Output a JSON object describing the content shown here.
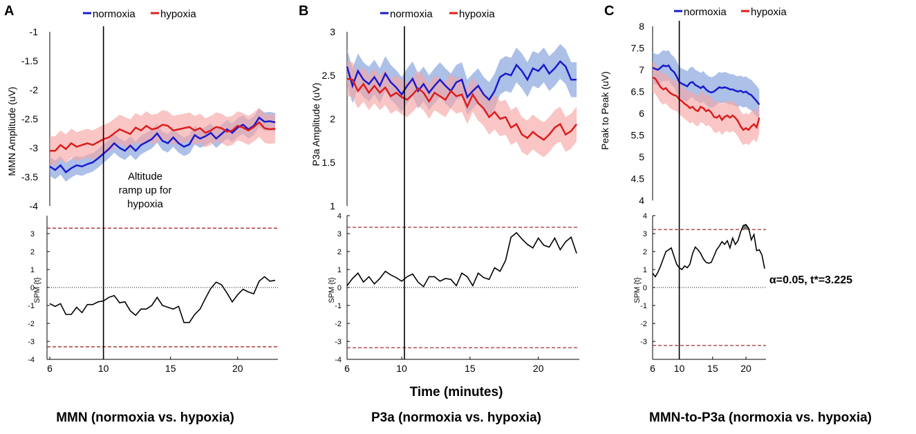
{
  "figure": {
    "common_xlabel": "Time (minutes)",
    "colors": {
      "normoxia": "#1a1acc",
      "hypoxia": "#dd1c1c",
      "normoxia_band": "#7f9edc",
      "hypoxia_band": "#f6a6a6",
      "threshold": "#a52a2a",
      "spm": "#000000"
    }
  },
  "chart_data": [
    {
      "panel": "A",
      "type": "line",
      "title": "MMN (normoxia vs. hypoxia)",
      "top": {
        "ylabel": "MMN Amplitude (uV)",
        "ylim": [
          -4,
          -1
        ],
        "yticks": [
          -4,
          -3.5,
          -3,
          -2.5,
          -2,
          -1.5,
          -1
        ],
        "legend": [
          "normoxia",
          "hypoxia"
        ],
        "legend_position": "top",
        "x": [
          6,
          6.4,
          6.8,
          7.2,
          7.6,
          8,
          8.4,
          8.8,
          9.2,
          9.6,
          10,
          10.4,
          10.8,
          11.2,
          11.6,
          12,
          12.4,
          12.8,
          13.2,
          13.6,
          14,
          14.4,
          14.8,
          15.2,
          15.6,
          16,
          16.4,
          16.8,
          17.2,
          17.6,
          18,
          18.4,
          18.8,
          19.2,
          19.6,
          20,
          20.4,
          20.8,
          21.2,
          21.6,
          22,
          22.4,
          22.8
        ],
        "series": [
          {
            "name": "normoxia",
            "values": [
              -3.32,
              -3.38,
              -3.3,
              -3.42,
              -3.35,
              -3.3,
              -3.32,
              -3.28,
              -3.25,
              -3.18,
              -3.1,
              -3.02,
              -2.92,
              -3.0,
              -3.05,
              -2.96,
              -3.05,
              -2.95,
              -2.9,
              -2.85,
              -2.75,
              -2.88,
              -2.92,
              -2.82,
              -2.92,
              -2.98,
              -2.94,
              -2.78,
              -2.84,
              -2.8,
              -2.74,
              -2.84,
              -2.76,
              -2.68,
              -2.74,
              -2.65,
              -2.6,
              -2.68,
              -2.62,
              -2.48,
              -2.55,
              -2.54,
              -2.56
            ],
            "band": 0.16
          },
          {
            "name": "hypoxia",
            "values": [
              -3.05,
              -3.05,
              -2.95,
              -3.02,
              -2.92,
              -2.98,
              -2.95,
              -2.92,
              -2.95,
              -2.9,
              -2.85,
              -2.82,
              -2.75,
              -2.68,
              -2.72,
              -2.76,
              -2.65,
              -2.7,
              -2.62,
              -2.68,
              -2.66,
              -2.6,
              -2.62,
              -2.7,
              -2.68,
              -2.66,
              -2.64,
              -2.7,
              -2.66,
              -2.74,
              -2.7,
              -2.64,
              -2.66,
              -2.72,
              -2.7,
              -2.62,
              -2.65,
              -2.7,
              -2.64,
              -2.56,
              -2.66,
              -2.68,
              -2.67
            ],
            "band": 0.25
          }
        ]
      },
      "bottom": {
        "ylabel": "SPM {t}",
        "ylim": [
          -4,
          4
        ],
        "yticks": [
          -4,
          -3,
          -2,
          -1,
          0,
          1,
          2,
          3
        ],
        "threshold": 3.3,
        "x": [
          6,
          6.4,
          6.8,
          7.2,
          7.6,
          8,
          8.4,
          8.8,
          9.2,
          9.6,
          10,
          10.4,
          10.8,
          11.2,
          11.6,
          12,
          12.4,
          12.8,
          13.2,
          13.6,
          14,
          14.4,
          14.8,
          15.2,
          15.6,
          16,
          16.4,
          16.8,
          17.2,
          17.6,
          18,
          18.4,
          18.8,
          19.2,
          19.6,
          20,
          20.4,
          20.8,
          21.2,
          21.6,
          22,
          22.4,
          22.8
        ],
        "values": [
          -0.9,
          -1.05,
          -0.9,
          -1.5,
          -1.5,
          -1.1,
          -1.4,
          -0.95,
          -0.95,
          -0.8,
          -0.75,
          -0.55,
          -0.45,
          -0.85,
          -0.8,
          -1.3,
          -1.55,
          -1.2,
          -1.2,
          -1.0,
          -0.55,
          -1.0,
          -1.1,
          -1.2,
          -1.05,
          -1.95,
          -1.95,
          -1.5,
          -1.2,
          -0.6,
          -0.05,
          0.3,
          0.15,
          -0.3,
          -0.8,
          -0.4,
          -0.1,
          -0.25,
          -0.35,
          0.35,
          0.6,
          0.35,
          0.4
        ]
      },
      "xlim": [
        6,
        23
      ],
      "xticks": [
        6,
        10,
        15,
        20
      ],
      "vline_x": 10,
      "annotation": [
        "Altitude",
        "ramp up for",
        "hypoxia"
      ]
    },
    {
      "panel": "B",
      "type": "line",
      "title": "P3a (normoxia vs. hypoxia)",
      "top": {
        "ylabel": "P3a Amplitude (uV)",
        "ylim": [
          1,
          3
        ],
        "yticks": [
          1,
          1.5,
          2,
          2.5,
          3
        ],
        "legend": [
          "normoxia",
          "hypoxia"
        ],
        "legend_position": "top",
        "x": [
          6,
          6.4,
          6.8,
          7.2,
          7.6,
          8,
          8.4,
          8.8,
          9.2,
          9.6,
          10,
          10.4,
          10.8,
          11.2,
          11.6,
          12,
          12.4,
          12.8,
          13.2,
          13.6,
          14,
          14.4,
          14.8,
          15.2,
          15.6,
          16,
          16.4,
          16.8,
          17.2,
          17.6,
          18,
          18.4,
          18.8,
          19.2,
          19.6,
          20,
          20.4,
          20.8,
          21.2,
          21.6,
          22,
          22.4,
          22.8
        ],
        "series": [
          {
            "name": "normoxia",
            "values": [
              2.6,
              2.38,
              2.55,
              2.45,
              2.4,
              2.48,
              2.38,
              2.52,
              2.42,
              2.36,
              2.28,
              2.38,
              2.46,
              2.32,
              2.4,
              2.3,
              2.38,
              2.45,
              2.38,
              2.32,
              2.42,
              2.45,
              2.25,
              2.32,
              2.38,
              2.28,
              2.22,
              2.32,
              2.48,
              2.52,
              2.5,
              2.62,
              2.55,
              2.45,
              2.58,
              2.55,
              2.62,
              2.52,
              2.58,
              2.66,
              2.6,
              2.45,
              2.45
            ],
            "band": 0.2
          },
          {
            "name": "hypoxia",
            "values": [
              2.46,
              2.45,
              2.32,
              2.4,
              2.3,
              2.38,
              2.3,
              2.36,
              2.26,
              2.3,
              2.25,
              2.22,
              2.28,
              2.35,
              2.3,
              2.2,
              2.3,
              2.26,
              2.22,
              2.32,
              2.26,
              2.28,
              2.14,
              2.28,
              2.18,
              2.12,
              2.02,
              2.08,
              2.0,
              2.02,
              1.9,
              1.94,
              1.82,
              1.78,
              1.85,
              1.8,
              1.76,
              1.82,
              1.9,
              1.94,
              1.82,
              1.86,
              1.94
            ],
            "band": 0.2
          }
        ]
      },
      "bottom": {
        "ylabel": "SPM {t}",
        "ylim": [
          -4,
          4
        ],
        "yticks": [
          -4,
          -3,
          -2,
          -1,
          0,
          1,
          2,
          3,
          4
        ],
        "threshold": 3.35,
        "x": [
          6,
          6.4,
          6.8,
          7.2,
          7.6,
          8,
          8.4,
          8.8,
          9.2,
          9.6,
          10,
          10.4,
          10.8,
          11.2,
          11.6,
          12,
          12.4,
          12.8,
          13.2,
          13.6,
          14,
          14.4,
          14.8,
          15.2,
          15.6,
          16,
          16.4,
          16.8,
          17.2,
          17.6,
          18,
          18.4,
          18.8,
          19.2,
          19.6,
          20,
          20.4,
          20.8,
          21.2,
          21.6,
          22,
          22.4,
          22.8
        ],
        "values": [
          0.1,
          0.5,
          0.8,
          0.3,
          0.6,
          0.2,
          0.5,
          0.9,
          0.7,
          0.55,
          0.35,
          0.6,
          0.75,
          0.3,
          0.05,
          0.6,
          0.6,
          0.35,
          0.5,
          0.45,
          0.1,
          0.8,
          0.6,
          0.1,
          0.8,
          0.55,
          0.45,
          1.1,
          0.9,
          1.5,
          2.8,
          3.05,
          2.7,
          2.4,
          2.2,
          2.75,
          2.35,
          2.25,
          2.75,
          2.1,
          2.55,
          2.8,
          1.9
        ]
      },
      "xlim": [
        6,
        23
      ],
      "xticks": [
        6,
        10,
        15,
        20
      ],
      "vline_x": 10.2
    },
    {
      "panel": "C",
      "type": "line",
      "title": "MMN-to-P3a (normoxia vs. hypoxia)",
      "top": {
        "ylabel": "Peak to Peak (uV)",
        "ylim": [
          4,
          8
        ],
        "yticks": [
          4,
          4.5,
          5,
          5.5,
          6,
          6.5,
          7,
          7.5,
          8
        ],
        "legend": [
          "normoxia",
          "hypoxia"
        ],
        "legend_position": "top",
        "x": [
          6,
          6.4,
          6.8,
          7.2,
          7.6,
          8,
          8.4,
          8.8,
          9.2,
          9.6,
          10,
          10.4,
          10.8,
          11.2,
          11.6,
          12,
          12.4,
          12.8,
          13.2,
          13.6,
          14,
          14.4,
          14.8,
          15.2,
          15.6,
          16,
          16.4,
          16.8,
          17.2,
          17.6,
          18,
          18.4,
          18.8,
          19.2,
          19.6,
          20,
          20.4,
          20.8,
          21.2,
          21.6,
          22
        ],
        "series": [
          {
            "name": "normoxia",
            "values": [
              7.05,
              7.02,
              7.0,
              7.05,
              7.1,
              7.08,
              7.1,
              7.0,
              6.95,
              6.85,
              6.72,
              6.68,
              6.65,
              6.62,
              6.7,
              6.72,
              6.65,
              6.62,
              6.58,
              6.62,
              6.55,
              6.5,
              6.48,
              6.5,
              6.55,
              6.6,
              6.58,
              6.6,
              6.58,
              6.55,
              6.55,
              6.52,
              6.5,
              6.52,
              6.48,
              6.5,
              6.45,
              6.42,
              6.35,
              6.28,
              6.2
            ],
            "band": 0.35
          },
          {
            "name": "hypoxia",
            "values": [
              6.82,
              6.8,
              6.7,
              6.6,
              6.55,
              6.58,
              6.5,
              6.45,
              6.42,
              6.4,
              6.32,
              6.28,
              6.22,
              6.18,
              6.12,
              6.15,
              6.08,
              6.05,
              6.15,
              6.12,
              6.05,
              6.08,
              6.02,
              5.92,
              5.9,
              5.95,
              5.85,
              5.92,
              5.95,
              5.9,
              5.95,
              5.9,
              5.82,
              5.7,
              5.62,
              5.66,
              5.62,
              5.7,
              5.75,
              5.68,
              5.9
            ],
            "band": 0.35
          }
        ]
      },
      "bottom": {
        "ylabel": "SPM {t}",
        "ylim": [
          -4,
          4
        ],
        "yticks": [
          -3,
          -2,
          -1,
          0,
          1,
          2,
          3,
          4
        ],
        "threshold": 3.225,
        "x": [
          6,
          6.4,
          6.8,
          7.2,
          7.6,
          8,
          8.4,
          8.8,
          9.2,
          9.6,
          10,
          10.4,
          10.8,
          11.2,
          11.6,
          12,
          12.4,
          12.8,
          13.2,
          13.6,
          14,
          14.4,
          14.8,
          15.2,
          15.6,
          16,
          16.4,
          16.8,
          17.2,
          17.6,
          18,
          18.4,
          18.8,
          19.2,
          19.6,
          20,
          20.4,
          20.8,
          21.2,
          21.6,
          22,
          22.4,
          22.8
        ],
        "values": [
          0.8,
          0.6,
          0.85,
          1.2,
          1.6,
          2.0,
          2.1,
          2.2,
          1.75,
          1.3,
          1.1,
          1.0,
          1.2,
          1.1,
          1.3,
          1.9,
          2.25,
          2.1,
          1.9,
          1.6,
          1.4,
          1.35,
          1.4,
          1.75,
          2.1,
          2.3,
          2.55,
          2.4,
          2.6,
          2.2,
          2.75,
          2.4,
          2.6,
          3.1,
          3.45,
          3.5,
          3.3,
          2.65,
          2.95,
          2.05,
          2.1,
          1.8,
          1.05
        ]
      },
      "xlim": [
        6,
        23
      ],
      "xticks": [
        6,
        10,
        15,
        20
      ],
      "vline_x": 10,
      "annotation": "α=0.05, t*=3.225"
    }
  ]
}
